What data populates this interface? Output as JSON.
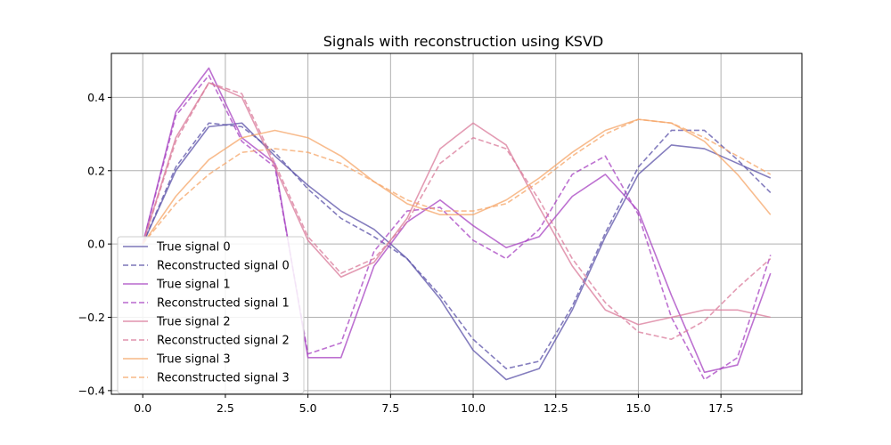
{
  "chart_data": {
    "type": "line",
    "title": "Signals with reconstruction using KSVD",
    "xlabel": "",
    "ylabel": "",
    "xlim": [
      -0.95,
      19.95
    ],
    "ylim": [
      -0.41,
      0.52
    ],
    "grid": true,
    "legend_position": "lower-left",
    "x": [
      0,
      1,
      2,
      3,
      4,
      5,
      6,
      7,
      8,
      9,
      10,
      11,
      12,
      13,
      14,
      15,
      16,
      17,
      18,
      19
    ],
    "x_ticks": [
      0,
      2.5,
      5,
      7.5,
      10,
      12.5,
      15,
      17.5
    ],
    "x_tick_labels": [
      "0.0",
      "2.5",
      "5.0",
      "7.5",
      "10.0",
      "12.5",
      "15.0",
      "17.5"
    ],
    "y_ticks": [
      -0.4,
      -0.2,
      0.0,
      0.2,
      0.4
    ],
    "y_tick_labels": [
      "−0.4",
      "−0.2",
      "0.0",
      "0.2",
      "0.4"
    ],
    "series": [
      {
        "name": "True signal 0",
        "color": "#5b52a8",
        "dashed": false,
        "values": [
          0.0,
          0.2,
          0.32,
          0.33,
          0.24,
          0.16,
          0.09,
          0.04,
          -0.04,
          -0.15,
          -0.29,
          -0.37,
          -0.34,
          -0.18,
          0.02,
          0.19,
          0.27,
          0.26,
          0.22,
          0.18
        ]
      },
      {
        "name": "Reconstructed signal 0",
        "color": "#5b52a8",
        "dashed": true,
        "values": [
          0.0,
          0.21,
          0.33,
          0.32,
          0.25,
          0.15,
          0.07,
          0.02,
          -0.04,
          -0.14,
          -0.26,
          -0.34,
          -0.32,
          -0.17,
          0.03,
          0.21,
          0.31,
          0.31,
          0.23,
          0.14
        ]
      },
      {
        "name": "True signal 1",
        "color": "#a742c2",
        "dashed": false,
        "values": [
          0.0,
          0.36,
          0.48,
          0.29,
          0.22,
          -0.31,
          -0.31,
          -0.06,
          0.06,
          0.12,
          0.05,
          -0.01,
          0.02,
          0.13,
          0.19,
          0.09,
          -0.14,
          -0.35,
          -0.33,
          -0.08
        ]
      },
      {
        "name": "Reconstructed signal 1",
        "color": "#a742c2",
        "dashed": true,
        "values": [
          0.0,
          0.35,
          0.46,
          0.28,
          0.21,
          -0.3,
          -0.27,
          -0.02,
          0.09,
          0.1,
          0.01,
          -0.04,
          0.04,
          0.19,
          0.24,
          0.08,
          -0.2,
          -0.37,
          -0.31,
          -0.03
        ]
      },
      {
        "name": "True signal 2",
        "color": "#d9799a",
        "dashed": false,
        "values": [
          0.0,
          0.29,
          0.44,
          0.4,
          0.21,
          0.01,
          -0.09,
          -0.05,
          0.07,
          0.26,
          0.33,
          0.27,
          0.1,
          -0.06,
          -0.18,
          -0.22,
          -0.2,
          -0.18,
          -0.18,
          -0.2
        ]
      },
      {
        "name": "Reconstructed signal 2",
        "color": "#d9799a",
        "dashed": true,
        "values": [
          0.0,
          0.28,
          0.44,
          0.41,
          0.22,
          0.02,
          -0.08,
          -0.04,
          0.06,
          0.22,
          0.29,
          0.26,
          0.12,
          -0.04,
          -0.16,
          -0.24,
          -0.26,
          -0.21,
          -0.12,
          -0.04
        ]
      },
      {
        "name": "True signal 3",
        "color": "#f5a668",
        "dashed": false,
        "values": [
          0.0,
          0.13,
          0.23,
          0.29,
          0.31,
          0.29,
          0.24,
          0.17,
          0.11,
          0.08,
          0.08,
          0.12,
          0.18,
          0.25,
          0.31,
          0.34,
          0.33,
          0.28,
          0.19,
          0.08
        ]
      },
      {
        "name": "Reconstructed signal 3",
        "color": "#f5a668",
        "dashed": true,
        "values": [
          0.0,
          0.11,
          0.19,
          0.25,
          0.26,
          0.25,
          0.22,
          0.17,
          0.12,
          0.09,
          0.09,
          0.11,
          0.17,
          0.24,
          0.3,
          0.34,
          0.33,
          0.29,
          0.24,
          0.19
        ]
      }
    ]
  }
}
